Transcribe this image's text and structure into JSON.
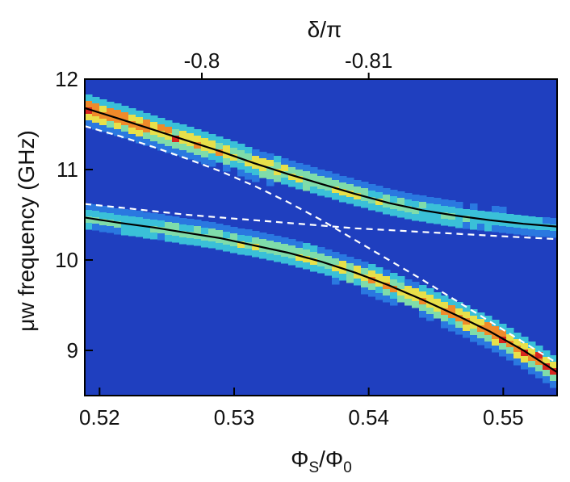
{
  "chart_data": {
    "type": "heatmap",
    "title": "",
    "xlabel": "ΦS/Φ0",
    "xlabel_parts": {
      "main": "Φ",
      "sub1": "S",
      "slash": "/Φ",
      "sub2": "0"
    },
    "ylabel": "μw frequency (GHz)",
    "top_xlabel": "δ/π",
    "xlim": [
      0.5189,
      0.554
    ],
    "ylim": [
      8.5,
      12.0
    ],
    "x_ticks": [
      0.52,
      0.53,
      0.54,
      0.55
    ],
    "x_tick_labels": [
      "0.52",
      "0.53",
      "0.54",
      "0.55"
    ],
    "y_ticks": [
      9,
      10,
      11,
      12
    ],
    "y_tick_labels": [
      "9",
      "10",
      "11",
      "12"
    ],
    "top_ticks": [
      {
        "label": "-0.8",
        "x": 0.5276
      },
      {
        "label": "-0.81",
        "x": 0.54
      }
    ],
    "grid": false,
    "legend": "none",
    "colormap": [
      "#1f3fbf",
      "#2a78e0",
      "#3ac0d8",
      "#7fdcaa",
      "#e8e04a",
      "#f08a2a",
      "#d8261e"
    ],
    "background_color": "#1f3fbf",
    "series": [
      {
        "style": "solid-black",
        "x": [
          0.5189,
          0.5215,
          0.524,
          0.5265,
          0.529,
          0.5315,
          0.534,
          0.5365,
          0.539,
          0.5415,
          0.544,
          0.5465,
          0.549,
          0.5515,
          0.554
        ],
        "y": [
          11.68,
          11.56,
          11.44,
          11.32,
          11.2,
          11.07,
          10.95,
          10.84,
          10.73,
          10.63,
          10.55,
          10.49,
          10.44,
          10.4,
          10.37
        ]
      },
      {
        "style": "solid-black",
        "x": [
          0.5189,
          0.5215,
          0.524,
          0.5265,
          0.529,
          0.5315,
          0.534,
          0.5365,
          0.539,
          0.5415,
          0.544,
          0.5465,
          0.549,
          0.5515,
          0.554
        ],
        "y": [
          10.47,
          10.41,
          10.36,
          10.3,
          10.24,
          10.16,
          10.08,
          9.98,
          9.86,
          9.72,
          9.56,
          9.39,
          9.21,
          9.0,
          8.76
        ]
      },
      {
        "style": "dashed-white",
        "x": [
          0.5189,
          0.5215,
          0.524,
          0.5265,
          0.529,
          0.5315,
          0.534,
          0.5365,
          0.539,
          0.5415,
          0.544,
          0.5465,
          0.549,
          0.5515,
          0.554
        ],
        "y": [
          11.48,
          11.37,
          11.25,
          11.12,
          10.98,
          10.82,
          10.64,
          10.44,
          10.22,
          10.0,
          9.78,
          9.55,
          9.32,
          9.09,
          8.86
        ]
      },
      {
        "style": "dashed-white",
        "x": [
          0.5189,
          0.5215,
          0.524,
          0.5265,
          0.529,
          0.5315,
          0.534,
          0.5365,
          0.539,
          0.5415,
          0.544,
          0.5465,
          0.549,
          0.5515,
          0.554
        ],
        "y": [
          10.62,
          10.58,
          10.54,
          10.5,
          10.47,
          10.44,
          10.41,
          10.38,
          10.35,
          10.33,
          10.31,
          10.29,
          10.27,
          10.25,
          10.23
        ]
      }
    ]
  }
}
